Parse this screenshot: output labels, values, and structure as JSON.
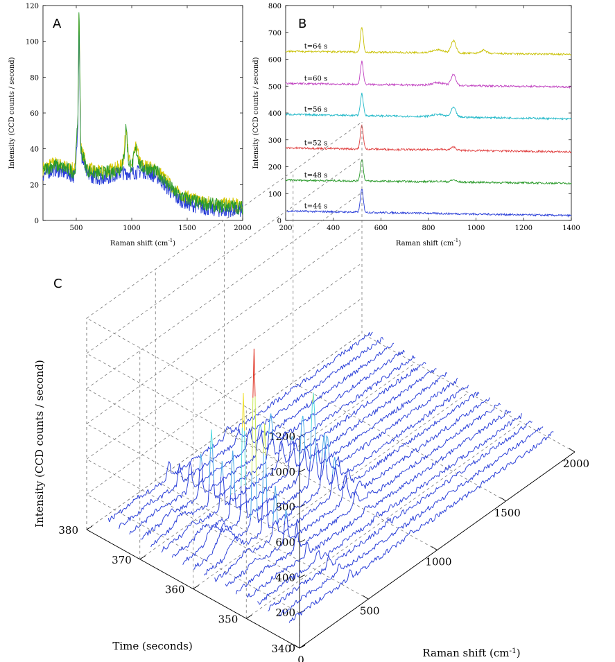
{
  "chart_data": [
    {
      "panel": "A",
      "type": "line",
      "panel_label": "A",
      "xlabel": "Raman shift (cm",
      "xlabel_sup": "-1",
      "xlabel_end": ")",
      "ylabel": "Intensity (CCD counts / second)",
      "xlim": [
        200,
        2000
      ],
      "ylim": [
        0,
        120
      ],
      "xticks": [
        500,
        1000,
        1500,
        2000
      ],
      "yticks": [
        0,
        20,
        40,
        60,
        80,
        100,
        120
      ],
      "series_colors": [
        "#d8c800",
        "#2a9a2a",
        "#2a3fd8"
      ],
      "series": [
        {
          "x": [
            200,
            300,
            400,
            490,
            515,
            525,
            540,
            600,
            700,
            800,
            900,
            930,
            950,
            970,
            1000,
            1040,
            1080,
            1150,
            1250,
            1300,
            1400,
            1500,
            1600,
            1700,
            1800,
            1900,
            2000
          ],
          "y": [
            28,
            31,
            29,
            27,
            60,
            118,
            40,
            28,
            26,
            27,
            29,
            35,
            54,
            33,
            30,
            40,
            30,
            29,
            26,
            22,
            15,
            12,
            10,
            9,
            8,
            8,
            7
          ]
        },
        {
          "x": [
            200,
            300,
            400,
            490,
            515,
            525,
            540,
            600,
            700,
            800,
            900,
            1000,
            1100,
            1150,
            1250,
            1300,
            1400,
            1500,
            1600,
            1700,
            1800,
            1900,
            2000
          ],
          "y": [
            27,
            30,
            28,
            26,
            58,
            115,
            38,
            27,
            25,
            26,
            28,
            28,
            29,
            28,
            25,
            21,
            14,
            11,
            9,
            8,
            7,
            7,
            7
          ]
        }
      ]
    },
    {
      "panel": "B",
      "type": "line",
      "panel_label": "B",
      "xlabel": "Raman shift (cm",
      "xlabel_sup": "-1",
      "xlabel_end": ")",
      "ylabel": "Intensity (CCD counts / second)",
      "xlim": [
        200,
        1400
      ],
      "ylim": [
        0,
        800
      ],
      "xticks": [
        200,
        400,
        600,
        800,
        1000,
        1200,
        1400
      ],
      "yticks": [
        0,
        100,
        200,
        300,
        400,
        500,
        600,
        700,
        800
      ],
      "peak_x": [
        520,
        905,
        1030
      ],
      "series": [
        {
          "name": "t=44 s",
          "color": "#2a3fd8",
          "base": 35,
          "end": 18,
          "peaks": [
            85,
            0,
            0
          ]
        },
        {
          "name": "t=48 s",
          "color": "#2a9a2a",
          "base": 150,
          "end": 138,
          "peaks": [
            82,
            8,
            0
          ]
        },
        {
          "name": "t=52 s",
          "color": "#e04040",
          "base": 270,
          "end": 255,
          "peaks": [
            88,
            12,
            0
          ]
        },
        {
          "name": "t=56 s",
          "color": "#20b8c8",
          "base": 395,
          "end": 378,
          "peaks": [
            82,
            35,
            0
          ]
        },
        {
          "name": "t=60 s",
          "color": "#c040c0",
          "base": 510,
          "end": 497,
          "peaks": [
            85,
            40,
            0
          ]
        },
        {
          "name": "t=64 s",
          "color": "#c8c000",
          "base": 630,
          "end": 618,
          "peaks": [
            92,
            45,
            12
          ]
        }
      ]
    },
    {
      "panel": "C",
      "type": "line",
      "panel_label": "C",
      "xlabel": "Raman shift (cm",
      "xlabel_sup": "-1",
      "xlabel_end": ")",
      "ylabel": "Time (seconds)",
      "zlabel": "Intensity (CCD counts / second)",
      "x_ticks": [
        0,
        500,
        1000,
        1500,
        2000
      ],
      "y_ticks": [
        340,
        350,
        360,
        370,
        380
      ],
      "z_ticks": [
        0,
        200,
        400,
        600,
        800,
        1000,
        1200
      ],
      "xlim": [
        0,
        2000
      ],
      "ylim": [
        340,
        380
      ],
      "zlim": [
        0,
        1200
      ],
      "spectra_times": [
        344,
        346,
        348,
        350,
        352,
        354,
        356,
        358,
        360,
        362,
        364,
        366,
        368,
        370,
        372,
        374,
        376,
        378
      ],
      "spectra_peak_520": [
        40,
        40,
        50,
        60,
        80,
        140,
        200,
        300,
        600,
        1010,
        700,
        350,
        250,
        400,
        230,
        150,
        100,
        90
      ],
      "spectra_peak_950": [
        20,
        20,
        25,
        30,
        40,
        80,
        150,
        200,
        300,
        500,
        350,
        200,
        150,
        250,
        160,
        100,
        60,
        50
      ]
    }
  ]
}
